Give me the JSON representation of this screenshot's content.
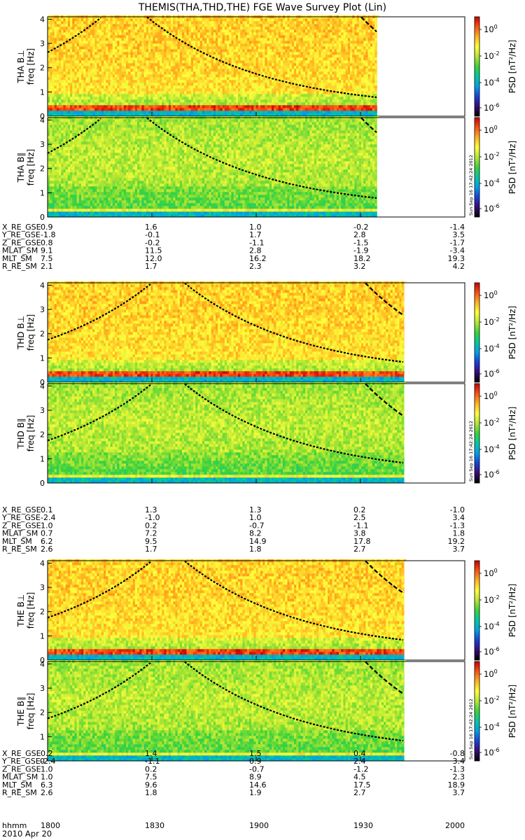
{
  "title": "THEMIS(THA,THD,THE) FGE Wave Survey Plot (Lin)",
  "date_label": "2010 Apr 20",
  "stamp": "Sun Sep 16 17:42:24 2012",
  "colorbar": {
    "label_prefix": "PSD",
    "label_units": "[nT²/Hz]",
    "tick_base": "10",
    "tick_exponents": [
      "0",
      "-2",
      "-4",
      "-6"
    ],
    "colors": [
      "#000000",
      "#3a0a7a",
      "#1a40d8",
      "#00a0e8",
      "#00c8a0",
      "#3cd23c",
      "#b4e632",
      "#ffff3c",
      "#ffb41e",
      "#ff5014",
      "#c80000"
    ]
  },
  "ephemeris_rows": [
    "X_RE_GSE",
    "Y_RE_GSE",
    "Z_RE_GSE",
    "MLAT_SM",
    "MLT_SM",
    "R_RE_SM"
  ],
  "time_row": {
    "label": "hhmm",
    "values": [
      "1800",
      "1830",
      "1900",
      "1930",
      "2000"
    ]
  },
  "chart_data": [
    {
      "type": "heatmap",
      "probe": "THA",
      "panels": [
        {
          "ylabel": "THA B⊥",
          "yunit": "freq [Hz]",
          "yticks": [
            "0",
            "1",
            "2",
            "3",
            "4"
          ],
          "ylim": [
            0,
            4.1
          ],
          "stamp": false
        },
        {
          "ylabel": "THA B∥",
          "yunit": "freq [Hz]",
          "yticks": [
            "0",
            "1",
            "2",
            "3",
            "4"
          ],
          "ylim": [
            0,
            4.1
          ],
          "stamp": true
        }
      ],
      "xlim_hhmm": [
        "1800",
        "2000"
      ],
      "data_end_fraction": 0.79,
      "ephemeris": [
        [
          "0.9",
          "1.6",
          "1.0",
          "-0.2",
          "-1.4"
        ],
        [
          "-1.8",
          "-0.1",
          "1.7",
          "2.8",
          "3.5"
        ],
        [
          "0.8",
          "-0.2",
          "-1.1",
          "-1.5",
          "-1.7"
        ],
        [
          "9.1",
          "11.5",
          "2.8",
          "-1.9",
          "-3.4"
        ],
        [
          "7.5",
          "12.0",
          "16.2",
          "18.2",
          "19.3"
        ],
        [
          "2.1",
          "1.7",
          "2.3",
          "3.2",
          "4.2"
        ]
      ]
    },
    {
      "type": "heatmap",
      "probe": "THD",
      "panels": [
        {
          "ylabel": "THD B⊥",
          "yunit": "freq [Hz]",
          "yticks": [
            "0",
            "1",
            "2",
            "3",
            "4"
          ],
          "ylim": [
            0,
            4.1
          ],
          "stamp": false
        },
        {
          "ylabel": "THD B∥",
          "yunit": "freq [Hz]",
          "yticks": [
            "0",
            "1",
            "2",
            "3",
            "4"
          ],
          "ylim": [
            0,
            4.1
          ],
          "stamp": true
        }
      ],
      "xlim_hhmm": [
        "1800",
        "2000"
      ],
      "data_end_fraction": 0.855,
      "ephemeris": [
        [
          "0.1",
          "1.3",
          "1.3",
          "0.2",
          "-1.0"
        ],
        [
          "-2.4",
          "-1.0",
          "1.0",
          "2.5",
          "3.4"
        ],
        [
          "1.0",
          "0.2",
          "-0.7",
          "-1.1",
          "-1.3"
        ],
        [
          "0.7",
          "7.2",
          "8.2",
          "3.8",
          "1.8"
        ],
        [
          "6.2",
          "9.5",
          "14.9",
          "17.8",
          "19.2"
        ],
        [
          "2.6",
          "1.7",
          "1.8",
          "2.7",
          "3.7"
        ]
      ]
    },
    {
      "type": "heatmap",
      "probe": "THE",
      "panels": [
        {
          "ylabel": "THE B⊥",
          "yunit": "freq [Hz]",
          "yticks": [
            "0",
            "1",
            "2",
            "3",
            "4"
          ],
          "ylim": [
            0,
            4.1
          ],
          "stamp": false
        },
        {
          "ylabel": "THE B∥",
          "yunit": "freq [Hz]",
          "yticks": [
            "0",
            "1",
            "2",
            "3",
            "4"
          ],
          "ylim": [
            0,
            4.1
          ],
          "stamp": true
        }
      ],
      "xlim_hhmm": [
        "1800",
        "2000"
      ],
      "data_end_fraction": 0.855,
      "ephemeris": [
        [
          "0.2",
          "1.4",
          "1.5",
          "0.4",
          "-0.8"
        ],
        [
          "-2.4",
          "-1.1",
          "0.9",
          "2.4",
          "3.4"
        ],
        [
          "1.0",
          "0.2",
          "-0.7",
          "-1.2",
          "-1.3"
        ],
        [
          "1.0",
          "7.5",
          "8.9",
          "4.5",
          "2.3"
        ],
        [
          "6.3",
          "9.6",
          "14.6",
          "17.5",
          "18.9"
        ],
        [
          "2.6",
          "1.8",
          "1.9",
          "2.7",
          "3.7"
        ]
      ]
    }
  ]
}
